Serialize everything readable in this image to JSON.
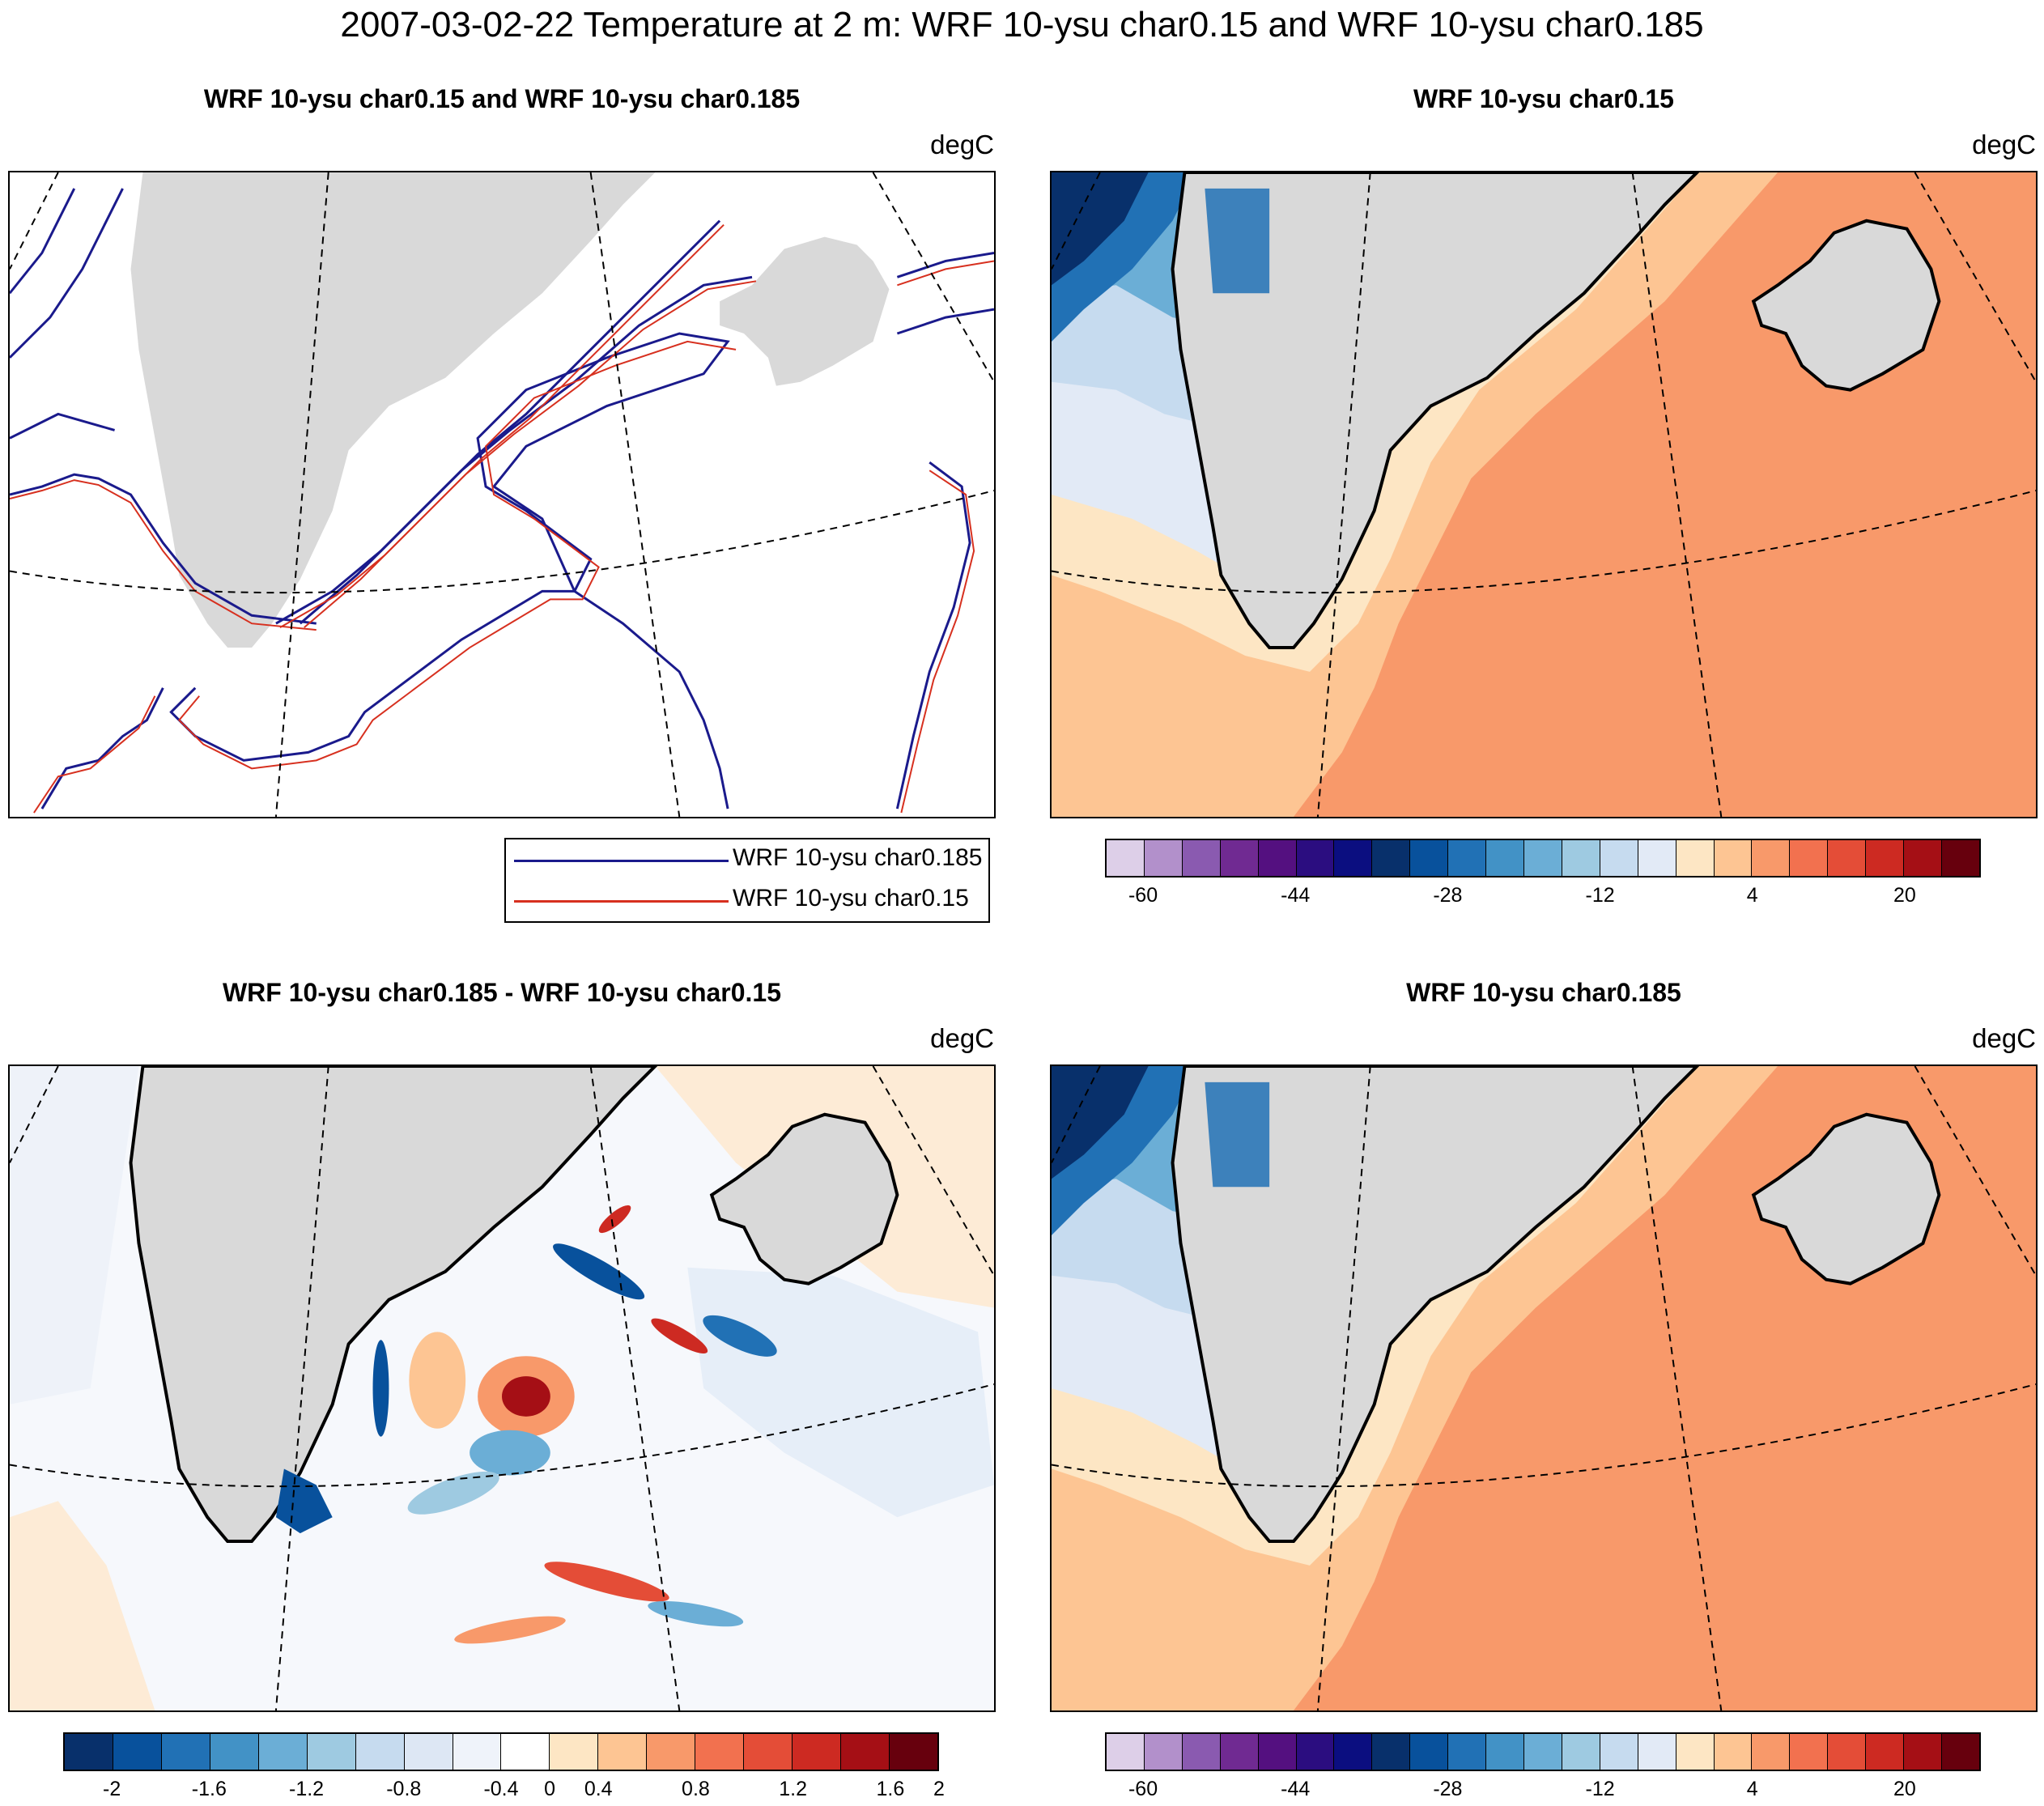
{
  "figure": {
    "title": "2007-03-02-22 Temperature at 2 m: WRF 10-ysu char0.15 and WRF 10-ysu char0.185"
  },
  "panels": {
    "contour": {
      "title": "WRF 10-ysu char0.15 and WRF 10-ysu char0.185",
      "units": "degC",
      "legend": [
        {
          "label": "WRF 10-ysu char0.185",
          "color": "#1a1a8c"
        },
        {
          "label": "WRF 10-ysu char0.15",
          "color": "#d7301f"
        }
      ]
    },
    "char015": {
      "title": "WRF 10-ysu char0.15",
      "units": "degC"
    },
    "diff": {
      "title": "WRF 10-ysu char0.185 - WRF 10-ysu char0.15",
      "units": "degC"
    },
    "char0185": {
      "title": "WRF 10-ysu char0.185",
      "units": "degC"
    }
  },
  "colorbars": {
    "temperature": {
      "colors": [
        "#ddcfe8",
        "#b290cb",
        "#8a5ab0",
        "#702a92",
        "#541080",
        "#2b0d80",
        "#0b0e80",
        "#08306b",
        "#08519c",
        "#2171b5",
        "#4292c6",
        "#6baed6",
        "#9ecae1",
        "#c6dbef",
        "#e2eaf6",
        "#fde6c4",
        "#fdc593",
        "#f8996a",
        "#f2714f",
        "#e44d37",
        "#cd2a22",
        "#a50f15",
        "#67000d"
      ],
      "tick_labels": [
        "-60",
        "-44",
        "-28",
        "-12",
        "4",
        "20"
      ]
    },
    "difference": {
      "colors": [
        "#08306b",
        "#08519c",
        "#2171b5",
        "#4292c6",
        "#6baed6",
        "#9ecae1",
        "#c6dbef",
        "#dde7f4",
        "#eff3fa",
        "#ffffff",
        "#fde6c4",
        "#fdc593",
        "#f8996a",
        "#f2714f",
        "#e44d37",
        "#cd2a22",
        "#a50f15",
        "#67000d"
      ],
      "tick_labels": [
        "-2",
        "-1.6",
        "-1.2",
        "-0.8",
        "-0.4",
        "0",
        "0.4",
        "0.8",
        "1.2",
        "1.6",
        "2"
      ]
    }
  },
  "map": {
    "land_color": "#d9d9d9",
    "regions": [
      "Greenland",
      "Iceland"
    ]
  }
}
